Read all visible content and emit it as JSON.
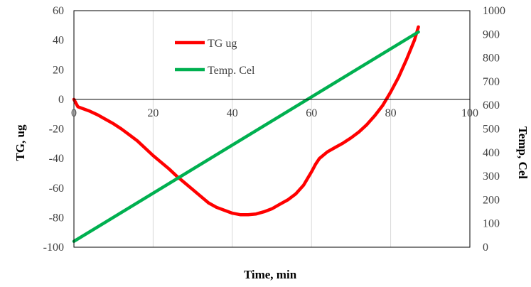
{
  "chart_data": {
    "type": "line",
    "title": "",
    "xlabel": "Time, min",
    "ylabel": "TG, ug",
    "y2label": "Temp, Cel",
    "xlim": [
      0,
      100
    ],
    "ylim": [
      -100,
      60
    ],
    "y2lim": [
      0,
      1000
    ],
    "x_ticks": [
      0,
      20,
      40,
      60,
      80,
      100
    ],
    "y_ticks": [
      -100,
      -80,
      -60,
      -40,
      -20,
      0,
      20,
      40,
      60
    ],
    "y2_ticks": [
      0,
      100,
      200,
      300,
      400,
      500,
      600,
      700,
      800,
      900,
      1000
    ],
    "grid": "vertical",
    "legend_position": "top-center",
    "series": [
      {
        "name": "TG ug",
        "axis": "left",
        "color": "#ff0000",
        "x": [
          0,
          1,
          2,
          4,
          6,
          8,
          10,
          12,
          14,
          16,
          18,
          20,
          22,
          24,
          26,
          28,
          30,
          32,
          34,
          36,
          38,
          40,
          42,
          44,
          46,
          48,
          50,
          52,
          54,
          56,
          58,
          60,
          61,
          62,
          64,
          66,
          68,
          70,
          72,
          74,
          76,
          78,
          80,
          82,
          84,
          86,
          87
        ],
        "y": [
          0,
          -5,
          -6,
          -8,
          -10.5,
          -13.5,
          -16.5,
          -20,
          -24,
          -28,
          -33,
          -38,
          -42.5,
          -47,
          -52,
          -56.5,
          -61,
          -65.5,
          -70,
          -73,
          -75,
          -77,
          -78,
          -78,
          -77.5,
          -76,
          -74,
          -71,
          -68,
          -64,
          -58,
          -49,
          -44,
          -40,
          -35.5,
          -32.5,
          -29.5,
          -26,
          -22,
          -17,
          -11,
          -4,
          5,
          15,
          27,
          40,
          49
        ]
      },
      {
        "name": "Temp. Cel",
        "axis": "right",
        "color": "#00b050",
        "x": [
          0,
          87
        ],
        "y": [
          25,
          910
        ]
      }
    ]
  }
}
